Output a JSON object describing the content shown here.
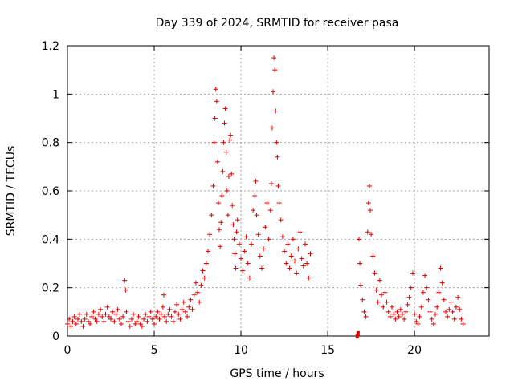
{
  "chart_data": {
    "type": "scatter",
    "title": "Day 339 of 2024, SRMTID for receiver pasa",
    "xlabel": "GPS time / hours",
    "ylabel": "SRMTID / TECUs",
    "xlim": [
      0,
      24.3
    ],
    "ylim": [
      0,
      1.2
    ],
    "xticks": [
      0,
      5,
      10,
      15,
      20
    ],
    "xtick_labels": [
      "0",
      "5",
      "10",
      "15",
      "20"
    ],
    "yticks": [
      0,
      0.2,
      0.4,
      0.6,
      0.8,
      1.0,
      1.2
    ],
    "ytick_labels": [
      "0",
      "0.2",
      "0.4",
      "0.6",
      "0.8",
      "1",
      "1.2"
    ],
    "grid": true,
    "marker": "+",
    "series": [
      {
        "name": "SRMTID",
        "color": "#e00000",
        "points": [
          [
            0.0,
            0.05
          ],
          [
            0.1,
            0.07
          ],
          [
            0.2,
            0.04
          ],
          [
            0.3,
            0.06
          ],
          [
            0.4,
            0.08
          ],
          [
            0.5,
            0.05
          ],
          [
            0.6,
            0.07
          ],
          [
            0.7,
            0.09
          ],
          [
            0.8,
            0.06
          ],
          [
            0.9,
            0.04
          ],
          [
            1.0,
            0.07
          ],
          [
            1.1,
            0.09
          ],
          [
            1.2,
            0.06
          ],
          [
            1.3,
            0.05
          ],
          [
            1.4,
            0.08
          ],
          [
            1.5,
            0.1
          ],
          [
            1.6,
            0.07
          ],
          [
            1.7,
            0.06
          ],
          [
            1.8,
            0.09
          ],
          [
            1.9,
            0.11
          ],
          [
            2.0,
            0.08
          ],
          [
            2.1,
            0.06
          ],
          [
            2.2,
            0.09
          ],
          [
            2.3,
            0.12
          ],
          [
            2.4,
            0.08
          ],
          [
            2.5,
            0.07
          ],
          [
            2.6,
            0.1
          ],
          [
            2.7,
            0.06
          ],
          [
            2.8,
            0.09
          ],
          [
            2.9,
            0.11
          ],
          [
            3.0,
            0.07
          ],
          [
            3.1,
            0.05
          ],
          [
            3.2,
            0.08
          ],
          [
            3.3,
            0.23
          ],
          [
            3.35,
            0.19
          ],
          [
            3.4,
            0.1
          ],
          [
            3.5,
            0.06
          ],
          [
            3.6,
            0.04
          ],
          [
            3.7,
            0.07
          ],
          [
            3.8,
            0.09
          ],
          [
            3.9,
            0.05
          ],
          [
            4.0,
            0.06
          ],
          [
            4.1,
            0.08
          ],
          [
            4.2,
            0.05
          ],
          [
            4.3,
            0.04
          ],
          [
            4.4,
            0.07
          ],
          [
            4.5,
            0.09
          ],
          [
            4.6,
            0.06
          ],
          [
            4.7,
            0.08
          ],
          [
            4.8,
            0.1
          ],
          [
            4.9,
            0.07
          ],
          [
            5.0,
            0.05
          ],
          [
            5.1,
            0.08
          ],
          [
            5.2,
            0.1
          ],
          [
            5.3,
            0.07
          ],
          [
            5.4,
            0.09
          ],
          [
            5.5,
            0.12
          ],
          [
            5.55,
            0.17
          ],
          [
            5.6,
            0.08
          ],
          [
            5.7,
            0.06
          ],
          [
            5.8,
            0.09
          ],
          [
            5.9,
            0.11
          ],
          [
            6.0,
            0.08
          ],
          [
            6.1,
            0.06
          ],
          [
            6.2,
            0.1
          ],
          [
            6.3,
            0.13
          ],
          [
            6.4,
            0.09
          ],
          [
            6.5,
            0.07
          ],
          [
            6.6,
            0.11
          ],
          [
            6.7,
            0.14
          ],
          [
            6.8,
            0.1
          ],
          [
            6.9,
            0.08
          ],
          [
            7.0,
            0.12
          ],
          [
            7.1,
            0.15
          ],
          [
            7.2,
            0.11
          ],
          [
            7.3,
            0.17
          ],
          [
            7.4,
            0.22
          ],
          [
            7.5,
            0.18
          ],
          [
            7.6,
            0.14
          ],
          [
            7.7,
            0.21
          ],
          [
            7.8,
            0.27
          ],
          [
            7.9,
            0.24
          ],
          [
            8.0,
            0.3
          ],
          [
            8.1,
            0.35
          ],
          [
            8.2,
            0.42
          ],
          [
            8.3,
            0.5
          ],
          [
            8.4,
            0.62
          ],
          [
            8.45,
            0.8
          ],
          [
            8.5,
            0.9
          ],
          [
            8.55,
            1.02
          ],
          [
            8.6,
            0.97
          ],
          [
            8.65,
            0.72
          ],
          [
            8.7,
            0.55
          ],
          [
            8.75,
            0.44
          ],
          [
            8.8,
            0.37
          ],
          [
            8.85,
            0.47
          ],
          [
            8.9,
            0.58
          ],
          [
            8.95,
            0.68
          ],
          [
            9.0,
            0.8
          ],
          [
            9.05,
            0.88
          ],
          [
            9.1,
            0.94
          ],
          [
            9.15,
            0.76
          ],
          [
            9.2,
            0.6
          ],
          [
            9.25,
            0.5
          ],
          [
            9.3,
            0.66
          ],
          [
            9.35,
            0.81
          ],
          [
            9.4,
            0.83
          ],
          [
            9.45,
            0.67
          ],
          [
            9.5,
            0.54
          ],
          [
            9.55,
            0.46
          ],
          [
            9.6,
            0.4
          ],
          [
            9.65,
            0.34
          ],
          [
            9.7,
            0.28
          ],
          [
            9.75,
            0.43
          ],
          [
            9.8,
            0.48
          ],
          [
            9.9,
            0.38
          ],
          [
            10.0,
            0.32
          ],
          [
            10.1,
            0.27
          ],
          [
            10.2,
            0.35
          ],
          [
            10.3,
            0.41
          ],
          [
            10.4,
            0.3
          ],
          [
            10.5,
            0.24
          ],
          [
            10.6,
            0.38
          ],
          [
            10.7,
            0.52
          ],
          [
            10.8,
            0.58
          ],
          [
            10.85,
            0.64
          ],
          [
            10.9,
            0.5
          ],
          [
            11.0,
            0.42
          ],
          [
            11.1,
            0.33
          ],
          [
            11.2,
            0.28
          ],
          [
            11.3,
            0.36
          ],
          [
            11.4,
            0.45
          ],
          [
            11.5,
            0.55
          ],
          [
            11.6,
            0.4
          ],
          [
            11.7,
            0.52
          ],
          [
            11.75,
            0.63
          ],
          [
            11.8,
            0.86
          ],
          [
            11.85,
            1.01
          ],
          [
            11.9,
            1.15
          ],
          [
            11.95,
            1.1
          ],
          [
            12.0,
            0.93
          ],
          [
            12.05,
            0.8
          ],
          [
            12.1,
            0.74
          ],
          [
            12.15,
            0.62
          ],
          [
            12.2,
            0.55
          ],
          [
            12.3,
            0.48
          ],
          [
            12.4,
            0.41
          ],
          [
            12.5,
            0.35
          ],
          [
            12.6,
            0.3
          ],
          [
            12.7,
            0.38
          ],
          [
            12.8,
            0.28
          ],
          [
            12.9,
            0.33
          ],
          [
            13.0,
            0.4
          ],
          [
            13.1,
            0.31
          ],
          [
            13.2,
            0.26
          ],
          [
            13.3,
            0.36
          ],
          [
            13.4,
            0.43
          ],
          [
            13.5,
            0.32
          ],
          [
            13.6,
            0.29
          ],
          [
            13.7,
            0.38
          ],
          [
            13.8,
            0.3
          ],
          [
            13.9,
            0.24
          ],
          [
            14.0,
            0.34
          ],
          [
            16.7,
            0.0
          ],
          [
            16.75,
            0.01
          ],
          [
            16.8,
            0.4
          ],
          [
            16.85,
            0.3
          ],
          [
            16.9,
            0.21
          ],
          [
            17.0,
            0.15
          ],
          [
            17.1,
            0.1
          ],
          [
            17.2,
            0.08
          ],
          [
            17.3,
            0.43
          ],
          [
            17.35,
            0.55
          ],
          [
            17.4,
            0.62
          ],
          [
            17.45,
            0.52
          ],
          [
            17.5,
            0.42
          ],
          [
            17.6,
            0.33
          ],
          [
            17.7,
            0.26
          ],
          [
            17.8,
            0.19
          ],
          [
            17.9,
            0.14
          ],
          [
            18.0,
            0.23
          ],
          [
            18.1,
            0.17
          ],
          [
            18.2,
            0.12
          ],
          [
            18.3,
            0.18
          ],
          [
            18.4,
            0.14
          ],
          [
            18.5,
            0.1
          ],
          [
            18.6,
            0.08
          ],
          [
            18.7,
            0.12
          ],
          [
            18.8,
            0.09
          ],
          [
            18.9,
            0.07
          ],
          [
            19.0,
            0.1
          ],
          [
            19.1,
            0.08
          ],
          [
            19.2,
            0.11
          ],
          [
            19.3,
            0.09
          ],
          [
            19.4,
            0.07
          ],
          [
            19.5,
            0.1
          ],
          [
            19.6,
            0.13
          ],
          [
            19.7,
            0.16
          ],
          [
            19.8,
            0.2
          ],
          [
            19.9,
            0.26
          ],
          [
            20.0,
            0.09
          ],
          [
            20.1,
            0.06
          ],
          [
            20.2,
            0.05
          ],
          [
            20.3,
            0.08
          ],
          [
            20.4,
            0.12
          ],
          [
            20.5,
            0.18
          ],
          [
            20.6,
            0.25
          ],
          [
            20.7,
            0.2
          ],
          [
            20.8,
            0.15
          ],
          [
            20.9,
            0.1
          ],
          [
            21.0,
            0.07
          ],
          [
            21.1,
            0.05
          ],
          [
            21.2,
            0.09
          ],
          [
            21.3,
            0.12
          ],
          [
            21.4,
            0.18
          ],
          [
            21.5,
            0.28
          ],
          [
            21.6,
            0.22
          ],
          [
            21.7,
            0.15
          ],
          [
            21.8,
            0.1
          ],
          [
            21.9,
            0.08
          ],
          [
            22.0,
            0.11
          ],
          [
            22.1,
            0.14
          ],
          [
            22.2,
            0.1
          ],
          [
            22.3,
            0.07
          ],
          [
            22.4,
            0.12
          ],
          [
            22.5,
            0.16
          ],
          [
            22.6,
            0.11
          ],
          [
            22.7,
            0.07
          ],
          [
            22.8,
            0.05
          ]
        ]
      }
    ]
  }
}
